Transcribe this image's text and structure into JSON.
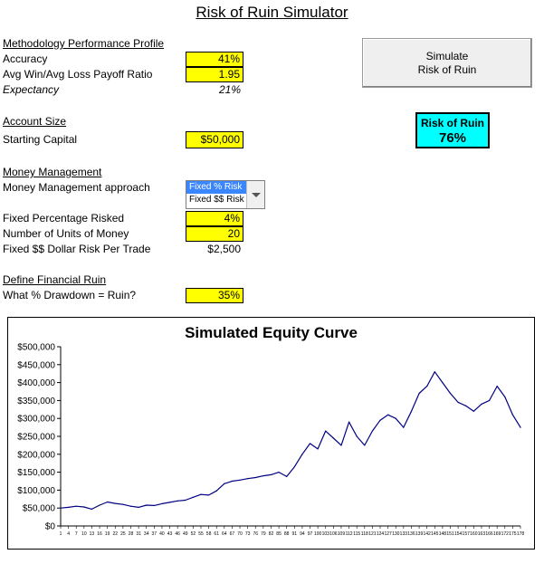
{
  "title": "Risk of Ruin Simulator",
  "methodology": {
    "header": "Methodology Performance Profile",
    "accuracy_label": "Accuracy",
    "accuracy_value": "41%",
    "payoff_label": "Avg Win/Avg Loss Payoff Ratio",
    "payoff_value": "1.95",
    "expectancy_label": "Expectancy",
    "expectancy_value": "21%"
  },
  "account": {
    "header": "Account Size",
    "capital_label": "Starting Capital",
    "capital_value": "$50,000"
  },
  "money": {
    "header": "Money Management",
    "approach_label": "Money Management approach",
    "options": [
      "Fixed % Risk",
      "Fixed $$ Risk"
    ],
    "selected": "Fixed % Risk",
    "pct_label": "Fixed Percentage Risked",
    "pct_value": "4%",
    "units_label": "Number of Units of Money",
    "units_value": "20",
    "dollar_label": "Fixed $$ Dollar Risk Per Trade",
    "dollar_value": "$2,500"
  },
  "ruin": {
    "header": "Define Financial Ruin",
    "drawdown_label": "What % Drawdown = Ruin?",
    "drawdown_value": "35%"
  },
  "simulate_button": [
    "Simulate",
    "Risk of Ruin"
  ],
  "risk_of_ruin": {
    "label": "Risk of Ruin",
    "value": "76%"
  },
  "chart_data": {
    "type": "line",
    "title": "Simulated Equity Curve",
    "ylim": [
      0,
      500000
    ],
    "y_ticks": [
      "$0",
      "$50,000",
      "$100,000",
      "$150,000",
      "$200,000",
      "$250,000",
      "$300,000",
      "$350,000",
      "$400,000",
      "$450,000",
      "$500,000"
    ],
    "line_color": "#000080",
    "grid": false,
    "x": [
      1,
      4,
      7,
      10,
      13,
      16,
      19,
      22,
      25,
      28,
      31,
      34,
      37,
      40,
      43,
      46,
      49,
      52,
      55,
      58,
      61,
      64,
      67,
      70,
      73,
      76,
      79,
      82,
      85,
      88,
      91,
      94,
      97,
      100,
      103,
      106,
      109,
      112,
      115,
      118,
      121,
      124,
      127,
      130,
      133,
      136,
      139,
      142,
      145,
      148,
      151,
      154,
      157,
      160,
      163,
      166,
      169,
      172,
      175,
      178
    ],
    "values": [
      50000,
      52000,
      55000,
      53000,
      47000,
      58000,
      67000,
      63000,
      60000,
      55000,
      52000,
      58000,
      57000,
      62000,
      66000,
      70000,
      72000,
      80000,
      88000,
      86000,
      98000,
      118000,
      125000,
      128000,
      132000,
      135000,
      140000,
      143000,
      150000,
      138000,
      165000,
      200000,
      230000,
      215000,
      265000,
      245000,
      225000,
      290000,
      250000,
      225000,
      265000,
      295000,
      310000,
      300000,
      275000,
      320000,
      370000,
      390000,
      430000,
      400000,
      370000,
      345000,
      335000,
      320000,
      340000,
      350000,
      390000,
      360000,
      310000,
      275000
    ],
    "x_tick_labels": [
      "1",
      "4",
      "7",
      "10",
      "13",
      "16",
      "19",
      "22",
      "25",
      "28",
      "31",
      "34",
      "37",
      "40",
      "43",
      "46",
      "49",
      "52",
      "55",
      "58",
      "61",
      "64",
      "67",
      "70",
      "73",
      "76",
      "79",
      "82",
      "85",
      "88",
      "91",
      "94",
      "97",
      "100",
      "103",
      "106",
      "109",
      "112",
      "115",
      "118",
      "121",
      "124",
      "127",
      "130",
      "133",
      "136",
      "139",
      "142",
      "145",
      "148",
      "151",
      "154",
      "157",
      "160",
      "163",
      "166",
      "169",
      "172",
      "175",
      "178"
    ]
  }
}
